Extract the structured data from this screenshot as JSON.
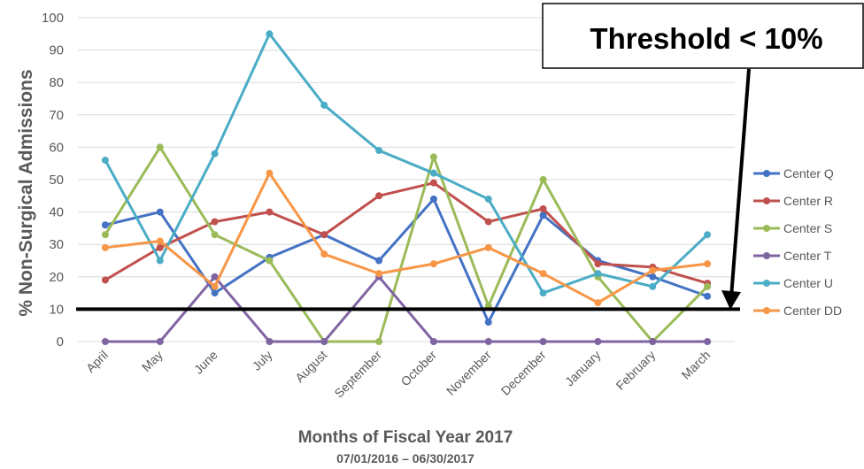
{
  "chart_data": {
    "type": "line",
    "xlabel": "Months of Fiscal Year 2017",
    "xsublabel": "07/01/2016 – 06/30/2017",
    "ylabel": "% Non-Surgical Admissions",
    "ylim": [
      0,
      100
    ],
    "yticks": [
      0,
      10,
      20,
      30,
      40,
      50,
      60,
      70,
      80,
      90,
      100
    ],
    "grid": true,
    "legend_position": "right",
    "categories": [
      "April",
      "May",
      "June",
      "July",
      "August",
      "September",
      "October",
      "November",
      "December",
      "January",
      "February",
      "March"
    ],
    "series": [
      {
        "name": "Center Q",
        "color": "#4472C4",
        "values": [
          36,
          40,
          15,
          26,
          33,
          25,
          44,
          6,
          39,
          25,
          20,
          14
        ]
      },
      {
        "name": "Center R",
        "color": "#C0504D",
        "values": [
          19,
          29,
          37,
          40,
          33,
          45,
          49,
          37,
          41,
          24,
          23,
          18
        ]
      },
      {
        "name": "Center S",
        "color": "#9BBB59",
        "values": [
          33,
          60,
          33,
          25,
          0,
          0,
          57,
          11,
          50,
          20,
          0,
          17
        ]
      },
      {
        "name": "Center T",
        "color": "#8064A2",
        "values": [
          0,
          0,
          20,
          0,
          0,
          20,
          0,
          0,
          0,
          0,
          0,
          0
        ]
      },
      {
        "name": "Center U",
        "color": "#4BACC6",
        "values": [
          56,
          25,
          58,
          95,
          73,
          59,
          52,
          44,
          15,
          21,
          17,
          33
        ]
      },
      {
        "name": "Center DD",
        "color": "#F79646",
        "values": [
          29,
          31,
          17,
          52,
          27,
          21,
          24,
          29,
          21,
          12,
          22,
          24
        ]
      }
    ],
    "annotation": {
      "text": "Threshold < 10%",
      "threshold_value": 10,
      "line_color": "#000000"
    }
  }
}
